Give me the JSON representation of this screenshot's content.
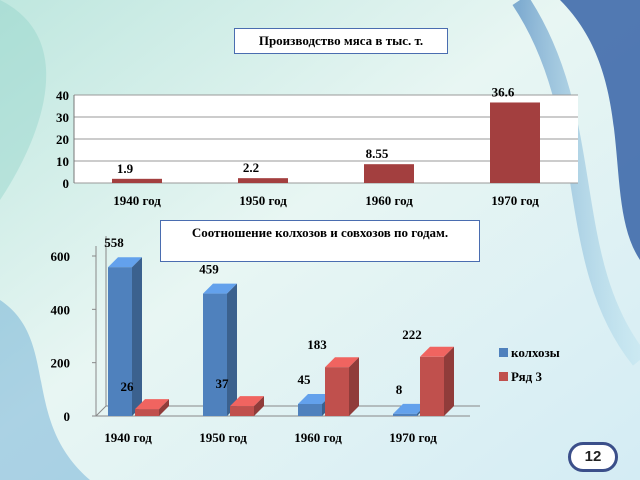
{
  "page_number": "12",
  "chart_data": [
    {
      "type": "bar",
      "title": "Производство мяса в тыс. т.",
      "categories": [
        "1940 год",
        "1950 год",
        "1960 год",
        "1970 год"
      ],
      "values": [
        1.9,
        2.2,
        8.55,
        36.6
      ],
      "value_labels": [
        "1.9",
        "2.2",
        "8.55",
        "36.6"
      ],
      "y_ticks": [
        "0",
        "10",
        "20",
        "30",
        "40"
      ],
      "ylim": [
        0,
        40
      ],
      "grid": true,
      "legend": "none",
      "colors": {
        "bar": "#a33f3f"
      }
    },
    {
      "type": "bar",
      "title": "Соотношение колхозов и совхозов по годам.",
      "categories": [
        "1940 год",
        "1950 год",
        "1960 год",
        "1970 год"
      ],
      "series": [
        {
          "name": "колхозы",
          "values": [
            558,
            459,
            45,
            8
          ],
          "labels": [
            "558",
            "459",
            "45",
            "8"
          ]
        },
        {
          "name": "Ряд 3",
          "values": [
            26,
            37,
            183,
            222
          ],
          "labels": [
            "26",
            "37",
            "183",
            "222"
          ]
        }
      ],
      "y_ticks": [
        "0",
        "200",
        "400",
        "600"
      ],
      "ylim": [
        0,
        600
      ],
      "grid": false,
      "legend": "right",
      "colors": {
        "колхозы": "#4f81bd",
        "Ряд 3": "#c0504d"
      }
    }
  ]
}
